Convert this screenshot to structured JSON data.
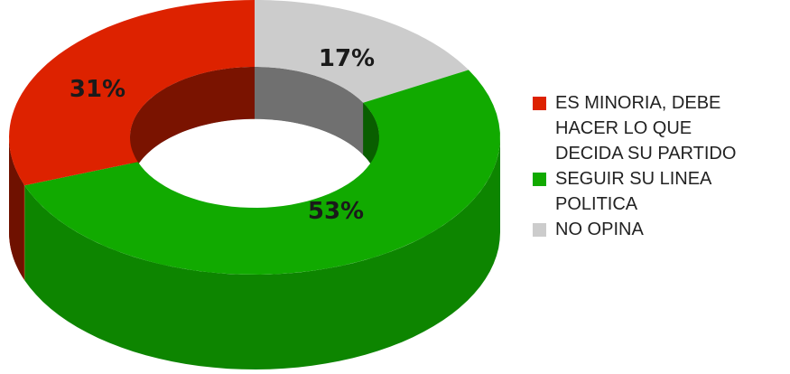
{
  "chart_data": {
    "type": "pie",
    "style": "3d-donut",
    "categories": [
      "ES MINORIA, DEBE HACER LO QUE DECIDA SU PARTIDO",
      "SEGUIR SU LINEA POLITICA",
      "NO OPINA"
    ],
    "values": [
      31,
      53,
      17
    ],
    "labels": [
      "31%",
      "53%",
      "17%"
    ],
    "colors": [
      "#dd2200",
      "#11aa00",
      "#cccccc"
    ],
    "legend_position": "right"
  },
  "legend": {
    "items": [
      {
        "lines": [
          "ES MINORIA, DEBE",
          "HACER LO QUE",
          "DECIDA SU PARTIDO"
        ],
        "color": "#dd2200"
      },
      {
        "lines": [
          "SEGUIR SU LINEA",
          "POLITICA"
        ],
        "color": "#11aa00"
      },
      {
        "lines": [
          "NO OPINA"
        ],
        "color": "#cccccc"
      }
    ]
  }
}
